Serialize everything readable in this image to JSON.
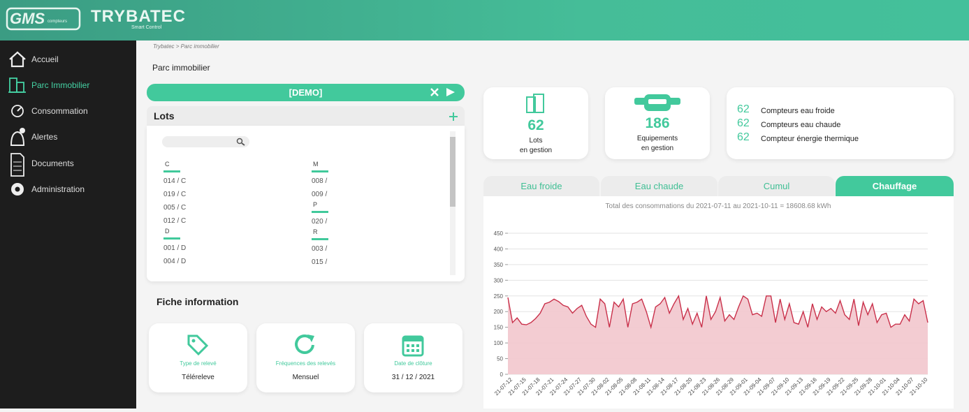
{
  "header": {
    "logo": "GMS",
    "logo_sub": "compteurs",
    "brand": "TRYBATEC",
    "tagline": "Smart Control"
  },
  "sidebar": {
    "items": [
      "Accueil",
      "Parc Immobilier",
      "Consommation",
      "Alertes",
      "Documents",
      "Administration"
    ]
  },
  "breadcrumb": "Trybatec > Parc immobilier",
  "page_title": "Parc immobilier",
  "site_bar": {
    "label": "[DEMO]"
  },
  "lots": {
    "title": "Lots",
    "columns": [
      {
        "groups": [
          {
            "letter": "C",
            "items": [
              "014 / C",
              "019 / C",
              "005 / C",
              "012 / C"
            ]
          },
          {
            "letter": "D",
            "items": [
              "001 / D",
              "004 / D"
            ]
          }
        ]
      },
      {
        "groups": [
          {
            "letter": "M",
            "items": [
              "008 /",
              "009 /"
            ]
          },
          {
            "letter": "P",
            "items": [
              "020 /"
            ]
          },
          {
            "letter": "R",
            "items": [
              "003 /",
              "015 /"
            ]
          }
        ]
      }
    ]
  },
  "fiche": {
    "title": "Fiche information",
    "cards": [
      {
        "label": "Type de relevé",
        "value": "Téléreleve"
      },
      {
        "label": "Fréquences des relevés",
        "value": "Mensuel"
      },
      {
        "label": "Date de clôture",
        "value": "31 / 12 / 2021"
      }
    ]
  },
  "stats": {
    "lots": {
      "value": 62,
      "line1": "Lots",
      "line2": "en gestion"
    },
    "equipements": {
      "value": 186,
      "line1": "Equipements",
      "line2": "en gestion"
    },
    "compteurs": [
      {
        "value": 62,
        "label": "Compteurs eau froide"
      },
      {
        "value": 62,
        "label": "Compteurs eau chaude"
      },
      {
        "value": 62,
        "label": "Compteur énergie thermique"
      }
    ]
  },
  "tabs": [
    "Eau froide",
    "Eau chaude",
    "Cumul",
    "Chauffage"
  ],
  "chart_data": {
    "type": "area",
    "title": "Total des consommations du 2021-07-11 au 2021-10-11 = 18608.68 kWh",
    "x": [
      null,
      "21-07-12",
      null,
      null,
      "21-07-15",
      null,
      null,
      "21-07-18",
      null,
      null,
      "21-07-21",
      null,
      null,
      "21-07-24",
      null,
      null,
      "21-07-27",
      null,
      null,
      "21-07-30",
      null,
      null,
      "21-08-02",
      null,
      null,
      "21-08-05",
      null,
      null,
      "21-08-08",
      null,
      null,
      "21-08-11",
      null,
      null,
      "21-08-14",
      null,
      null,
      "21-08-17",
      null,
      null,
      "21-08-20",
      null,
      null,
      "21-08-23",
      null,
      null,
      "21-08-26",
      null,
      null,
      "21-08-29",
      null,
      null,
      "21-09-01",
      null,
      null,
      "21-09-04",
      null,
      null,
      "21-09-07",
      null,
      null,
      "21-09-10",
      null,
      null,
      "21-09-13",
      null,
      null,
      "21-09-16",
      null,
      null,
      "21-09-19",
      null,
      null,
      "21-09-22",
      null,
      null,
      "21-09-25",
      null,
      null,
      "21-09-28",
      null,
      null,
      "21-10-01",
      null,
      null,
      "21-10-04",
      null,
      null,
      "21-10-07",
      null,
      null,
      "21-10-10"
    ],
    "values": [
      245,
      165,
      180,
      160,
      158,
      165,
      178,
      195,
      225,
      230,
      240,
      232,
      220,
      215,
      195,
      210,
      220,
      185,
      160,
      150,
      240,
      225,
      150,
      230,
      215,
      240,
      150,
      225,
      230,
      240,
      200,
      150,
      215,
      225,
      245,
      195,
      225,
      250,
      175,
      210,
      160,
      195,
      150,
      250,
      175,
      200,
      245,
      170,
      190,
      175,
      215,
      250,
      240,
      190,
      195,
      185,
      250,
      250,
      165,
      240,
      175,
      225,
      165,
      160,
      200,
      150,
      225,
      175,
      215,
      200,
      210,
      195,
      235,
      190,
      175,
      240,
      155,
      230,
      190,
      225,
      165,
      190,
      195,
      150,
      160,
      160,
      190,
      170,
      240,
      225,
      235,
      165
    ],
    "ylim": [
      0,
      450
    ],
    "yticks": [
      0,
      50,
      100,
      150,
      200,
      250,
      300,
      350,
      400,
      450
    ],
    "grid": true,
    "color": "#c9304a",
    "fill_color": "#f2c6cd"
  }
}
